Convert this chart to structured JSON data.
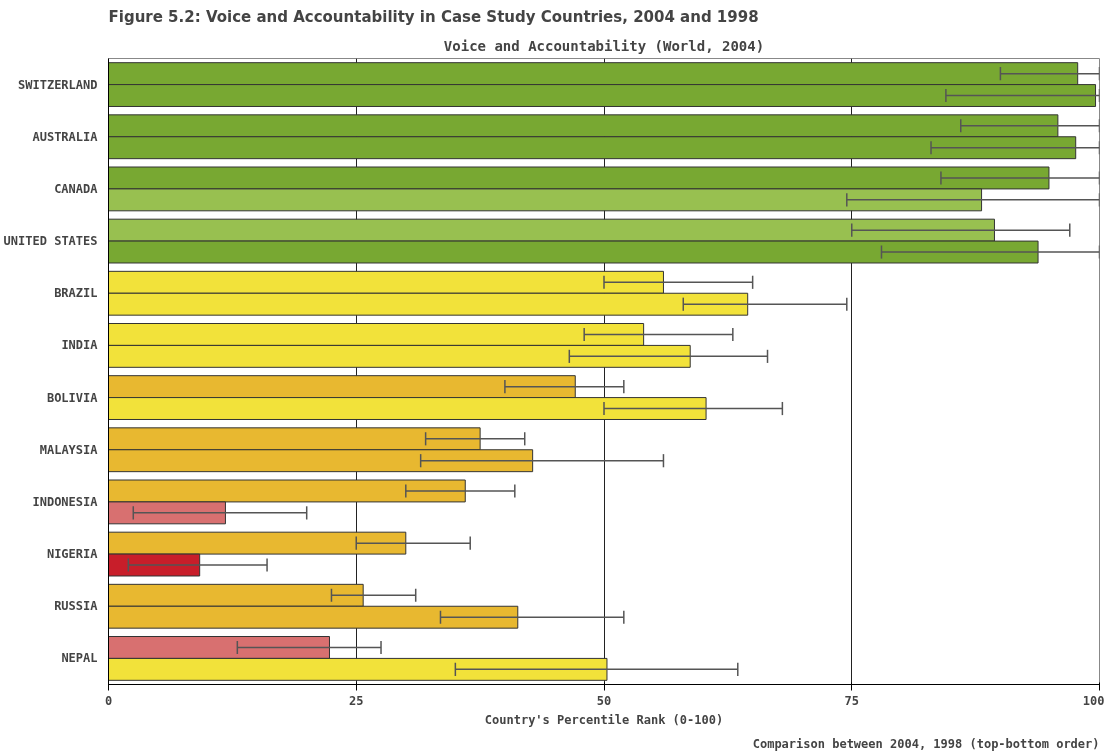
{
  "chart_data": {
    "type": "bar",
    "orientation": "horizontal",
    "title": "Figure 5.2: Voice and Accountability in Case Study Countries, 2004 and 1998",
    "subtitle": "Voice and Accountability (World, 2004)",
    "xlabel": "Country's Percentile Rank (0-100)",
    "annotations": [
      "Comparison between 2004, 1998 (top-bottom order)"
    ],
    "categories": [
      "SWITZERLAND",
      "AUSTRALIA",
      "CANADA",
      "UNITED STATES",
      "BRAZIL",
      "INDIA",
      "BOLIVIA",
      "MALAYSIA",
      "INDONESIA",
      "NIGERIA",
      "RUSSIA",
      "NEPAL"
    ],
    "series": [
      {
        "values": [
          97.8,
          95.8,
          94.9,
          89.4,
          56,
          54,
          47.1,
          37.5,
          36,
          30,
          25.7,
          22.3
        ],
        "colors": [
          "#78a832",
          "#78a832",
          "#78a832",
          "#98c050",
          "#f2e23a",
          "#f2e23a",
          "#e8b830",
          "#e8b830",
          "#e8b830",
          "#e8b830",
          "#e8b830",
          "#d87070"
        ],
        "errors": [
          [
            90,
            100
          ],
          [
            86,
            100
          ],
          [
            84,
            100
          ],
          [
            75,
            97
          ],
          [
            50,
            65
          ],
          [
            48,
            63
          ],
          [
            40,
            52
          ],
          [
            32,
            42
          ],
          [
            30,
            41
          ],
          [
            25,
            36.5
          ],
          [
            22.5,
            31
          ],
          [
            13,
            27.5
          ]
        ]
      },
      {
        "values": [
          99.6,
          97.6,
          88.1,
          93.8,
          64.5,
          58.7,
          60.3,
          42.8,
          11.8,
          9.2,
          41.3,
          50.3
        ],
        "colors": [
          "#78a832",
          "#78a832",
          "#98c050",
          "#78a832",
          "#f2e23a",
          "#f2e23a",
          "#f2e23a",
          "#e8b830",
          "#d87070",
          "#c81e2a",
          "#e8b830",
          "#f2e23a"
        ],
        "errors": [
          [
            84.5,
            100
          ],
          [
            83,
            100
          ],
          [
            74.5,
            100
          ],
          [
            78,
            100
          ],
          [
            58,
            74.5
          ],
          [
            46.5,
            66.5
          ],
          [
            50,
            68
          ],
          [
            31.5,
            56
          ],
          [
            2.5,
            20
          ],
          [
            2,
            16
          ],
          [
            33.5,
            52
          ],
          [
            35,
            63.5
          ]
        ]
      }
    ],
    "xlim": [
      0,
      100
    ],
    "xticks": [
      0,
      25,
      50,
      75,
      100
    ],
    "grid": "x"
  }
}
